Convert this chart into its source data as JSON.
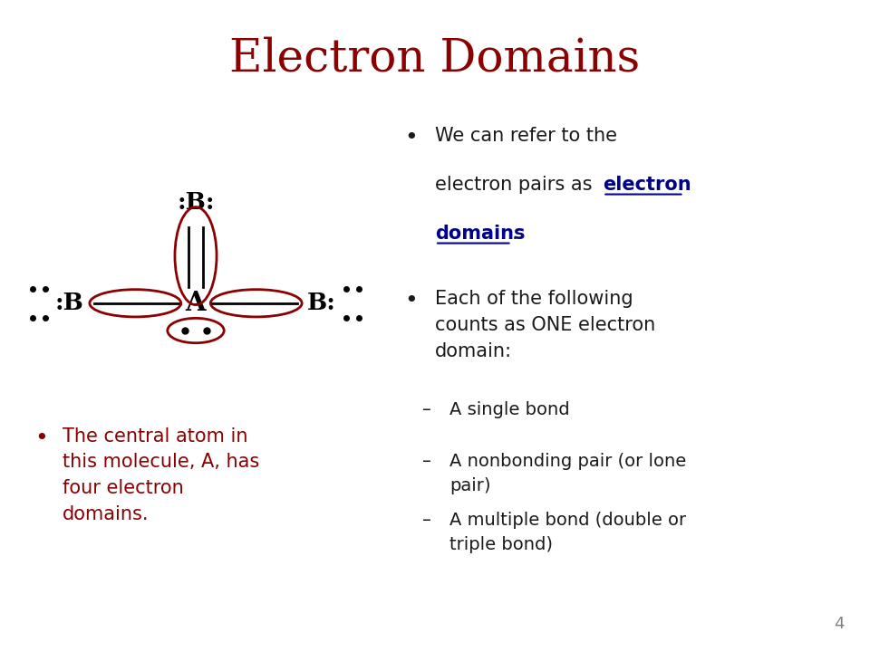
{
  "title": "Electron Domains",
  "title_color": "#8B0000",
  "title_fontsize": 36,
  "bg_color": "#ffffff",
  "bullet_color": "#8B0000",
  "text_color": "#1a1a1a",
  "link_color": "#00008B",
  "page_number": "4",
  "left_bullet": "The central atom in\nthis molecule, A, has\nfour electron\ndomains.",
  "sub_bullets": [
    "A single bond",
    "A nonbonding pair (or lone\npair)",
    "A multiple bond (double or\ntriple bond)"
  ],
  "ellipse_color": "#8B0000"
}
